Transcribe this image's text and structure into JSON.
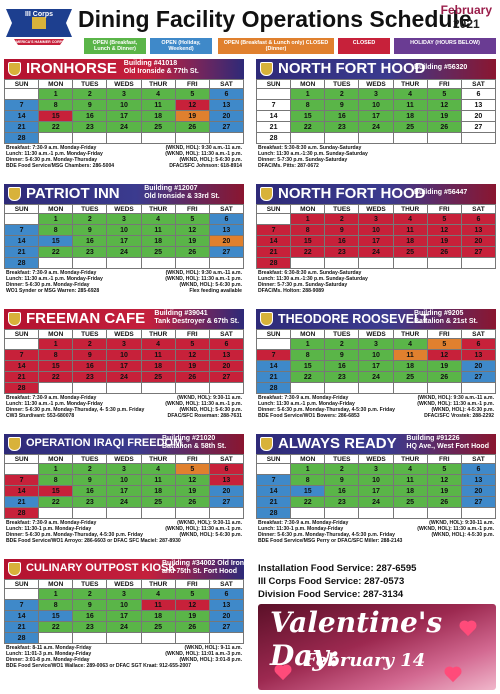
{
  "header": {
    "logo_text": "III Corps",
    "logo_sub": "AMERICA'S HAMMER CORPS",
    "title": "Dining Facility Operations Schedule",
    "month": "February",
    "year": "2021"
  },
  "legend": [
    {
      "label": "OPEN (Breakfast, Lunch & Dinner)",
      "color": "#5ab548"
    },
    {
      "label": "OPEN (Holiday, Weekend)",
      "color": "#3f89c9"
    },
    {
      "label": "OPEN (Breakfast & Lunch only) CLOSED (Dinner)",
      "color": "#e0802e"
    },
    {
      "label": "CLOSED",
      "color": "#c7213a"
    },
    {
      "label": "HOLIDAY (HOURS BELOW)",
      "color": "#6a3c93"
    }
  ],
  "days": [
    "SUN",
    "MON",
    "TUES",
    "WEDS",
    "THUR",
    "FRI",
    "SAT"
  ],
  "weeks": [
    [
      "",
      "1",
      "2",
      "3",
      "4",
      "5",
      "6"
    ],
    [
      "7",
      "8",
      "9",
      "10",
      "11",
      "12",
      "13"
    ],
    [
      "14",
      "15",
      "16",
      "17",
      "18",
      "19",
      "20"
    ],
    [
      "21",
      "22",
      "23",
      "24",
      "25",
      "26",
      "27"
    ],
    [
      "28",
      "",
      "",
      "",
      "",
      "",
      ""
    ]
  ],
  "facilities": [
    {
      "name": "IRONHORSE",
      "bld1": "Building #41018",
      "bld2": "Old Ironside & 77th St.",
      "style": "red",
      "colors": [
        "w",
        "g",
        "g",
        "g",
        "g",
        "g",
        "b",
        "b",
        "g",
        "g",
        "g",
        "g",
        "r",
        "b",
        "b",
        "r",
        "g",
        "g",
        "g",
        "o",
        "b",
        "b",
        "g",
        "g",
        "g",
        "g",
        "g",
        "b",
        "b",
        "w",
        "w",
        "w",
        "w",
        "w",
        "w"
      ],
      "info": [
        [
          "Breakfast: 7:30-9 a.m. Monday-Friday",
          "(WKND, HOL): 9:30 a.m.-11 a.m."
        ],
        [
          "Lunch: 11:30 a.m.-1 p.m. Monday-Friday",
          "(WKND, HOL): 11:30 a.m.-1 p.m."
        ],
        [
          "Dinner: 5-6:30 p.m. Monday-Thursday",
          "(WKND, HOL): 5-6:30 p.m."
        ],
        [
          "BDE Food Service/MSG Chambers: 286-5004",
          "DFAC/SFC Johnson: 618-8914"
        ]
      ]
    },
    {
      "name": "NORTH FORT HOOD",
      "bld1": "Building #56320",
      "bld2": "",
      "style": "blue",
      "colors": [
        "w",
        "g",
        "g",
        "g",
        "g",
        "g",
        "w",
        "w",
        "g",
        "g",
        "g",
        "g",
        "g",
        "w",
        "w",
        "g",
        "g",
        "g",
        "g",
        "g",
        "w",
        "w",
        "g",
        "g",
        "g",
        "g",
        "g",
        "w",
        "w",
        "w",
        "w",
        "w",
        "w",
        "w",
        "w"
      ],
      "info": [
        [
          "Breakfast: 5:30-8:30 a.m. Sunday-Saturday",
          ""
        ],
        [
          "Lunch: 11:30 a.m.-1:30 p.m. Sunday-Saturday",
          ""
        ],
        [
          "Dinner: 5-7:30 p.m. Sunday-Saturday",
          ""
        ],
        [
          "DFAC/Ms. Pitts: 287-0672",
          ""
        ]
      ]
    },
    {
      "name": "PATRIOT INN",
      "bld1": "Building #12007",
      "bld2": "Old Ironside & 33rd St.",
      "style": "blue",
      "colors": [
        "w",
        "g",
        "g",
        "g",
        "g",
        "g",
        "b",
        "b",
        "g",
        "g",
        "g",
        "g",
        "g",
        "b",
        "b",
        "b",
        "g",
        "g",
        "g",
        "g",
        "o",
        "b",
        "g",
        "g",
        "g",
        "g",
        "g",
        "b",
        "b",
        "w",
        "w",
        "w",
        "w",
        "w",
        "w"
      ],
      "info": [
        [
          "Breakfast: 7:30-9 a.m. Monday-Friday",
          "(WKND, HOL): 9:30 a.m.-11 a.m."
        ],
        [
          "Lunch: 11:30 a.m.-1 p.m. Monday-Friday",
          "(WKND, HOL): 11:30 a.m.-1 p.m."
        ],
        [
          "Dinner: 5-6:30 p.m. Monday-Friday",
          "(WKND, HOL): 5-6:30 p.m."
        ],
        [
          "WO1 Synder or MSG Warren: 285-6928",
          "Flex feeding available"
        ]
      ]
    },
    {
      "name": "NORTH FORT HOOD",
      "bld1": "Building #56447",
      "bld2": "",
      "style": "blue",
      "colors": [
        "w",
        "r",
        "r",
        "r",
        "r",
        "r",
        "r",
        "r",
        "r",
        "r",
        "r",
        "r",
        "r",
        "r",
        "r",
        "r",
        "r",
        "r",
        "r",
        "r",
        "r",
        "r",
        "r",
        "r",
        "r",
        "r",
        "r",
        "r",
        "r",
        "w",
        "w",
        "w",
        "w",
        "w",
        "w"
      ],
      "info": [
        [
          "Breakfast: 6:30-8:30 a.m. Sunday-Saturday",
          ""
        ],
        [
          "Lunch: 11:30 a.m.-1:30 p.m. Sunday-Saturday",
          ""
        ],
        [
          "Dinner: 5-7:30 p.m. Sunday-Saturday",
          ""
        ],
        [
          "DFAC/Ms. Holton: 288-9089",
          ""
        ]
      ]
    },
    {
      "name": "FREEMAN CAFE",
      "bld1": "Building #39041",
      "bld2": "Tank Destroyer & 67th St.",
      "style": "red",
      "colors": [
        "w",
        "r",
        "r",
        "r",
        "r",
        "r",
        "r",
        "r",
        "r",
        "r",
        "r",
        "r",
        "r",
        "r",
        "r",
        "r",
        "r",
        "r",
        "r",
        "r",
        "r",
        "r",
        "r",
        "r",
        "r",
        "r",
        "r",
        "r",
        "r",
        "w",
        "w",
        "w",
        "w",
        "w",
        "w"
      ],
      "info": [
        [
          "Breakfast: 7:30-9 a.m. Monday-Friday",
          "(WKND, HOL): 9:30-11 a.m."
        ],
        [
          "Lunch: 11:30 a.m.-1 p.m. Monday-Friday",
          "(WKND, HOL): 11:30 a.m.-1 p.m."
        ],
        [
          "Dinner: 5-6:30 p.m. Monday-Thursday, 4- 5:30 p.m. Friday",
          "(WKND, HOL): 5-6:30 p.m."
        ],
        [
          "CW3 Sturdivant: 553-680078",
          "DFAC/SFC Roseman: 288-7631"
        ]
      ]
    },
    {
      "name": "THEODORE ROOSEVELT",
      "bld1": "Building #9205",
      "bld2": "Battalion & 21st St.",
      "style": "blue",
      "colors": [
        "w",
        "g",
        "g",
        "g",
        "g",
        "o",
        "r",
        "r",
        "g",
        "g",
        "g",
        "o",
        "r",
        "r",
        "b",
        "g",
        "g",
        "g",
        "g",
        "g",
        "b",
        "b",
        "g",
        "g",
        "g",
        "g",
        "g",
        "b",
        "b",
        "w",
        "w",
        "w",
        "w",
        "w",
        "w"
      ],
      "info": [
        [
          "Breakfast: 7:30-9 a.m. Monday-Friday",
          "(WKND, HOL): 9:30 a.m.-11 a.m."
        ],
        [
          "Lunch: 11:30 a.m.-1 p.m. Monday-Friday",
          "(WKND, HOL): 11:30 a.m.-1 p.m."
        ],
        [
          "Dinner: 5-6:30 p.m. Monday-Thursday, 4-5:30 p.m. Friday",
          "(WKND, HOL): 4-5:30 p.m."
        ],
        [
          "BDE Food Service/WO1 Bowers: 286-6853",
          "DFAC/SFC Vrostek: 288-2292"
        ]
      ]
    },
    {
      "name": "OPERATION IRAQI FREEDOM",
      "bld1": "Building #21020",
      "bld2": "Battalion & 58th St.",
      "style": "blue",
      "colors": [
        "w",
        "g",
        "g",
        "g",
        "g",
        "o",
        "r",
        "r",
        "g",
        "g",
        "g",
        "g",
        "g",
        "r",
        "r",
        "r",
        "g",
        "g",
        "g",
        "g",
        "b",
        "b",
        "g",
        "g",
        "g",
        "g",
        "g",
        "b",
        "r",
        "w",
        "w",
        "w",
        "w",
        "w",
        "w"
      ],
      "info": [
        [
          "Breakfast: 7:30-9 a.m. Monday-Friday",
          "(WKND, HOL): 9:30-11 a.m."
        ],
        [
          "Lunch: 11:30-1 p.m. Monday-Friday",
          "(WKND, HOL): 11:30 a.m.-1 p.m."
        ],
        [
          "Dinner: 5-6:30 p.m. Monday-Thursday, 4-5:30 p.m. Friday",
          "(WKND, HOL): 5-6:30 p.m."
        ],
        [
          "BDE Food Service/WO1 Arroyo: 286-6603 or DFAC SFC Maciel: 287-8930",
          ""
        ]
      ]
    },
    {
      "name": "ALWAYS READY",
      "bld1": "Building #91226",
      "bld2": "HQ Ave., West Fort Hood",
      "style": "blue",
      "colors": [
        "w",
        "g",
        "g",
        "g",
        "g",
        "g",
        "b",
        "b",
        "g",
        "g",
        "g",
        "g",
        "g",
        "b",
        "b",
        "b",
        "g",
        "g",
        "g",
        "g",
        "b",
        "b",
        "g",
        "g",
        "g",
        "g",
        "g",
        "b",
        "b",
        "w",
        "w",
        "w",
        "w",
        "w",
        "w"
      ],
      "info": [
        [
          "Breakfast: 7:30-9 a.m. Monday-Friday",
          "(WKND, HOL): 9:30-11 a.m."
        ],
        [
          "Lunch: 11:30-1 p.m. Monday-Friday",
          "(WKND, HOL): 11:30 a.m.-1 p.m."
        ],
        [
          "Dinner: 5-6:30 p.m. Monday-Thursday, 4-5:30 p.m. Friday",
          "(WKND, HOL): 4-5:30 p.m."
        ],
        [
          "BDE Food Service/MSG Perry or DFAC/SFC Miller: 288-2143",
          ""
        ]
      ]
    },
    {
      "name": "CULINARY OUTPOST KIOSK",
      "bld1": "Building #34002 Old Ironside",
      "bld2": "and 75th St. Fort Hood",
      "style": "red",
      "colors": [
        "w",
        "g",
        "g",
        "g",
        "g",
        "g",
        "b",
        "b",
        "g",
        "g",
        "g",
        "r",
        "r",
        "b",
        "b",
        "b",
        "g",
        "g",
        "g",
        "g",
        "b",
        "b",
        "g",
        "g",
        "g",
        "g",
        "g",
        "b",
        "b",
        "w",
        "w",
        "w",
        "w",
        "w",
        "w"
      ],
      "info": [
        [
          "Breakfast: 8-11 a.m. Monday-Friday",
          "(WKND, HOL): 9-11 a.m."
        ],
        [
          "Lunch: 11:01-3 p.m. Monday-Friday",
          "(WKND, HOL): 11:01 a.m.-3 p.m."
        ],
        [
          "Dinner: 3:01-8 p.m. Monday-Friday",
          "(WKND, HOL): 3:01-8 p.m."
        ],
        [
          "BDE Food Service/WO1 Wallace: 289-0063 or DFAC SGT Kraat: 912-655-2007",
          ""
        ]
      ]
    }
  ],
  "phones": [
    "Installation Food Service: 287-6595",
    "III Corps Food Service: 287-0573",
    "Division Food Service: 287-3134"
  ],
  "valentine": {
    "line1": "Valentine's Day:",
    "line2": "February 14"
  }
}
